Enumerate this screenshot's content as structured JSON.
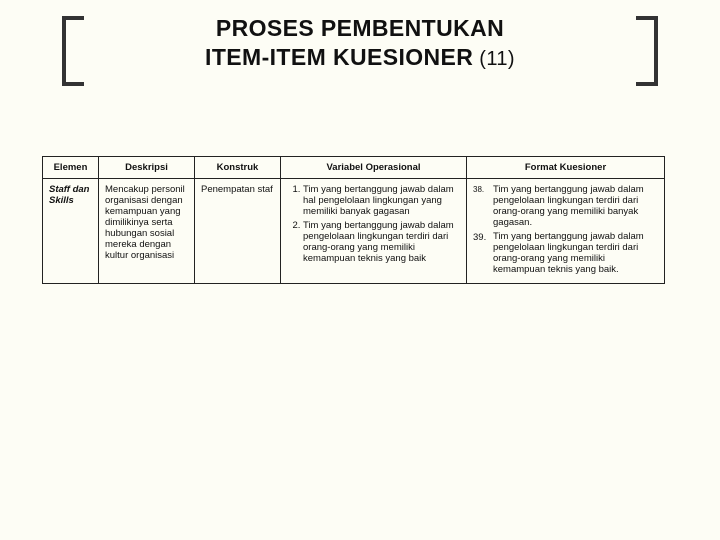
{
  "title": {
    "line1": "PROSES PEMBENTUKAN",
    "line2_bold": "ITEM-ITEM KUESIONER",
    "line2_tail": " (11)"
  },
  "headers": {
    "elemen": "Elemen",
    "deskripsi": "Deskripsi",
    "konstruk": "Konstruk",
    "variabel": "Variabel Operasional",
    "format": "Format Kuesioner"
  },
  "row": {
    "elemen": "Staff dan Skills",
    "deskripsi": "Mencakup personil organisasi dengan kemampuan yang dimilikinya serta hubungan sosial mereka dengan kultur organisasi",
    "konstruk": "Penempatan staf",
    "variabel": [
      "Tim yang bertanggung jawab dalam hal pengelolaan lingkungan yang memiliki banyak gagasan",
      "Tim yang bertanggung jawab dalam pengelolaan lingkungan terdiri dari orang-orang yang memiliki kemampuan teknis yang baik"
    ],
    "format": [
      {
        "n": "38.",
        "t": "Tim yang bertanggung jawab dalam pengelolaan lingkungan terdiri dari orang-orang yang memiliki banyak gagasan."
      },
      {
        "n": "39.",
        "t": "Tim yang bertanggung jawab dalam pengelolaan lingkungan terdiri dari orang-orang yang memiliki kemampuan teknis yang baik."
      }
    ]
  },
  "colors": {
    "background": "#fdfdf5",
    "border": "#222222",
    "text": "#111111"
  }
}
